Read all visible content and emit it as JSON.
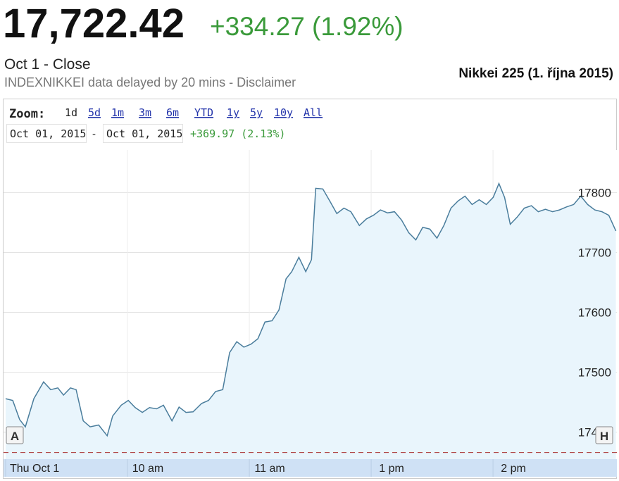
{
  "header": {
    "price": "17,722.42",
    "change": "+334.27 (1.92%)",
    "status": "Oct 1 - Close",
    "source": "INDEXNIKKEI data delayed by 20 mins - Disclaimer",
    "title": "Nikkei 225 (1. října 2015)"
  },
  "controls": {
    "zoom_label": "Zoom:",
    "zoom_options": [
      "1d",
      "5d",
      "1m",
      "3m",
      "6m",
      "YTD",
      "1y",
      "5y",
      "10y",
      "All"
    ],
    "date_from": "Oct 01, 2015",
    "separator": "-",
    "date_to": "Oct 01, 2015",
    "range_change": "+369.97 (2.13%)"
  },
  "chart_data": {
    "type": "line",
    "color": "#4a7d9c",
    "fill": "#e9f5fc",
    "x": [
      0,
      3.5,
      6.9,
      9.7,
      13.9,
      18.7,
      22.2,
      25.7,
      28.5,
      31.9,
      34.7,
      38.2,
      41.6,
      45.8,
      50,
      52.7,
      56.9,
      60.4,
      63.8,
      67.3,
      70.8,
      74.3,
      77.7,
      81.9,
      85.4,
      88.8,
      92.3,
      96.5,
      99.9,
      103.4,
      106.9,
      110.3,
      113.8,
      117.3,
      120.8,
      124.2,
      127.7,
      131.2,
      134.6,
      138.1,
      140.9,
      144.4,
      147.8,
      150.6,
      152.7,
      156.2,
      159.6,
      163.1,
      166.6,
      170,
      174.2,
      177.7,
      181.1,
      184.6,
      188.1,
      191.5,
      195,
      198.5,
      202,
      205.4,
      208.9,
      212.4,
      215.8,
      219.3,
      222.8,
      226.2,
      229.7,
      233.2,
      236.7,
      240.1,
      242.9,
      245.7,
      248.5,
      251.9,
      255.4,
      258.9,
      262.3,
      265.8,
      269.3,
      272.7,
      276.2,
      279.7,
      283.2,
      286.6,
      290.1,
      293.6,
      297,
      300.5
    ],
    "values": [
      17456,
      17453,
      17421,
      17409,
      17456,
      17484,
      17471,
      17474,
      17462,
      17474,
      17471,
      17419,
      17409,
      17412,
      17394,
      17427,
      17445,
      17453,
      17441,
      17433,
      17441,
      17439,
      17445,
      17419,
      17442,
      17433,
      17434,
      17448,
      17453,
      17468,
      17471,
      17533,
      17551,
      17542,
      17547,
      17556,
      17584,
      17586,
      17604,
      17656,
      17668,
      17692,
      17668,
      17688,
      17807,
      17806,
      17786,
      17765,
      17774,
      17768,
      17745,
      17756,
      17762,
      17771,
      17766,
      17768,
      17754,
      17733,
      17721,
      17742,
      17739,
      17724,
      17745,
      17774,
      17786,
      17794,
      17780,
      17788,
      17780,
      17792,
      17815,
      17792,
      17747,
      17759,
      17774,
      17778,
      17768,
      17772,
      17768,
      17771,
      17776,
      17780,
      17794,
      17780,
      17771,
      17768,
      17762,
      17736
    ],
    "xlim": [
      0,
      301
    ],
    "xticks": [
      {
        "value": 0,
        "label": "Thu Oct 1"
      },
      {
        "value": 60,
        "label": "10 am"
      },
      {
        "value": 120,
        "label": "11 am"
      },
      {
        "value": 180,
        "label": "1 pm"
      },
      {
        "value": 240,
        "label": "2 pm"
      }
    ],
    "ylim": [
      17355,
      17871
    ],
    "yticks": [
      17400,
      17500,
      17600,
      17700,
      17800
    ],
    "reference_line": 17366,
    "grid": true,
    "flags": [
      "A",
      "H"
    ]
  }
}
